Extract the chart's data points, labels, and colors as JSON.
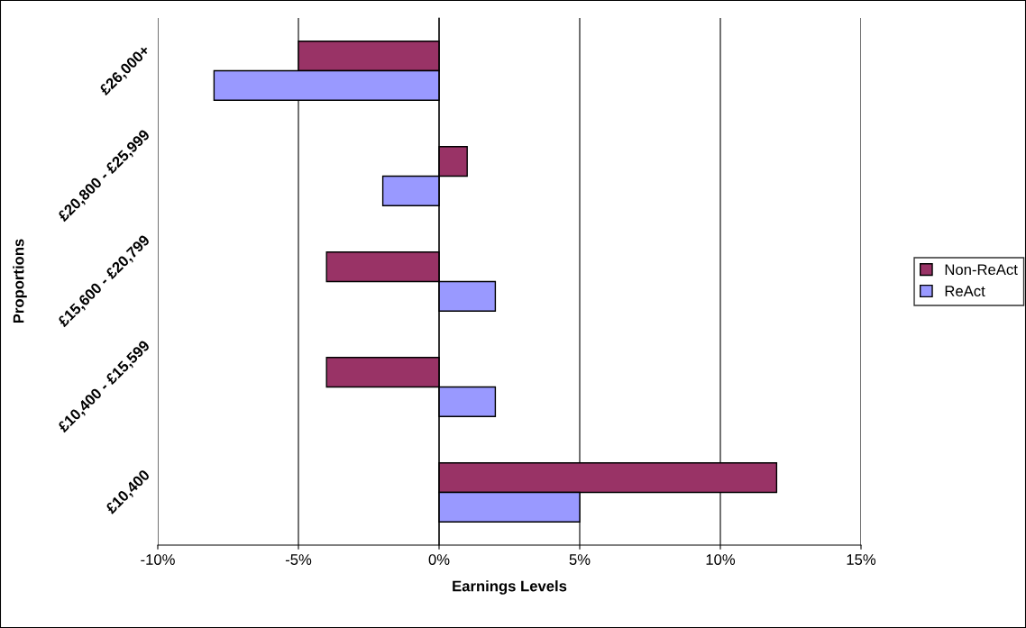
{
  "chart_data": {
    "type": "bar",
    "orientation": "horizontal",
    "xlabel": "Earnings Levels",
    "ylabel": "Proportions",
    "categories": [
      "£26,000+",
      "£20,800 - £25,999",
      "£15,600 - £20,799",
      "£10,400 - £15,599",
      "£10,400"
    ],
    "series": [
      {
        "name": "Non-ReAct",
        "color": "#993366",
        "values": [
          -5,
          1,
          -4,
          -4,
          12
        ]
      },
      {
        "name": "ReAct",
        "color": "#9999ff",
        "values": [
          -8,
          -2,
          2,
          2,
          5
        ]
      }
    ],
    "xlim": [
      -10,
      15
    ],
    "xticks": [
      {
        "value": -10,
        "label": "-10%"
      },
      {
        "value": -5,
        "label": "-5%"
      },
      {
        "value": 0,
        "label": "0%"
      },
      {
        "value": 5,
        "label": "5%"
      },
      {
        "value": 10,
        "label": "10%"
      },
      {
        "value": 15,
        "label": "15%"
      }
    ],
    "grid": "x",
    "legend": "right"
  }
}
